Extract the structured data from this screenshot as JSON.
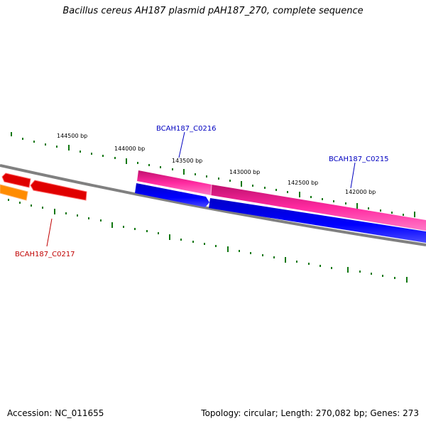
{
  "title": "Bacillus cereus AH187 plasmid pAH187_270, complete sequence",
  "footer": {
    "accession": "Accession: NC_011655",
    "summary": "Topology: circular; Length: 270,082 bp; Genes: 273"
  },
  "bp_labels": [
    "144500 bp",
    "144000 bp",
    "143500 bp",
    "143000 bp",
    "142500 bp",
    "142000 bp"
  ],
  "genes": {
    "c0216": "BCAH187_C0216",
    "c0215": "BCAH187_C0215",
    "c0217": "BCAH187_C0217"
  },
  "colors": {
    "backbone": "#808080",
    "ticks": "#117711",
    "forward_gene": "#e01890",
    "reverse_gene": "#0000e0",
    "red_gene": "#e00000",
    "orange_gene": "#ff8c00",
    "blue_label": "#0000c0",
    "red_label": "#c00000"
  }
}
